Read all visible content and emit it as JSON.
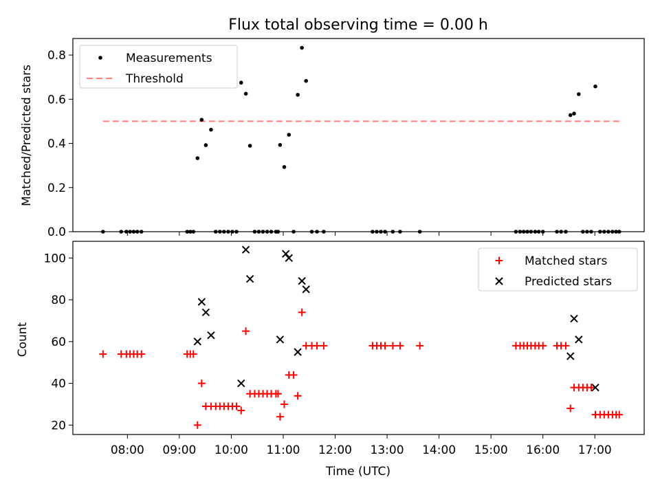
{
  "figure": {
    "title": "Flux total observing time = 0.00 h"
  },
  "chart_data": [
    {
      "type": "scatter",
      "panel": "top",
      "xlabel": "",
      "ylabel": "Matched/Predicted stars",
      "xlim": [
        6.95,
        17.95
      ],
      "ylim": [
        0,
        0.875
      ],
      "yticks": [
        0.0,
        0.2,
        0.4,
        0.6,
        0.8
      ],
      "ytick_labels": [
        "0.0",
        "0.2",
        "0.4",
        "0.6",
        "0.8"
      ],
      "xticks": [
        8,
        9,
        10,
        11,
        12,
        13,
        14,
        15,
        16,
        17
      ],
      "xtick_labels": [],
      "legend": {
        "position": "top-left",
        "entries": [
          {
            "label": "Measurements",
            "marker": "dot",
            "color": "#000000"
          },
          {
            "label": "Threshold",
            "marker": "dashed-line",
            "color": "#ff7f7f"
          }
        ]
      },
      "threshold": {
        "y": 0.5,
        "x_start": 7.53,
        "x_end": 17.47,
        "color": "#ff7f7f"
      },
      "series": [
        {
          "name": "Measurements",
          "marker": "dot",
          "color": "#000000",
          "points": [
            [
              7.53,
              0
            ],
            [
              7.88,
              0
            ],
            [
              7.98,
              0
            ],
            [
              8.05,
              0
            ],
            [
              8.12,
              0
            ],
            [
              8.19,
              0
            ],
            [
              8.27,
              0
            ],
            [
              9.15,
              0
            ],
            [
              9.21,
              0
            ],
            [
              9.27,
              0
            ],
            [
              9.35,
              0.333
            ],
            [
              9.43,
              0.507
            ],
            [
              9.51,
              0.392
            ],
            [
              9.61,
              0.462
            ],
            [
              9.7,
              0
            ],
            [
              9.78,
              0
            ],
            [
              9.86,
              0
            ],
            [
              9.94,
              0
            ],
            [
              10.02,
              0
            ],
            [
              10.1,
              0
            ],
            [
              10.19,
              0.675
            ],
            [
              10.28,
              0.625
            ],
            [
              10.36,
              0.389
            ],
            [
              10.45,
              0
            ],
            [
              10.53,
              0
            ],
            [
              10.61,
              0
            ],
            [
              10.69,
              0
            ],
            [
              10.77,
              0
            ],
            [
              10.86,
              0
            ],
            [
              10.9,
              0
            ],
            [
              10.94,
              0.393
            ],
            [
              11.02,
              0.293
            ],
            [
              11.11,
              0.439
            ],
            [
              11.2,
              0
            ],
            [
              11.28,
              0.62
            ],
            [
              11.36,
              0.833
            ],
            [
              11.44,
              0.683
            ],
            [
              11.55,
              0
            ],
            [
              11.65,
              0
            ],
            [
              11.78,
              0
            ],
            [
              12.72,
              0
            ],
            [
              12.8,
              0
            ],
            [
              12.88,
              0
            ],
            [
              12.96,
              0
            ],
            [
              13.11,
              0
            ],
            [
              13.25,
              0
            ],
            [
              13.63,
              0
            ],
            [
              15.48,
              0
            ],
            [
              15.56,
              0
            ],
            [
              15.63,
              0
            ],
            [
              15.7,
              0
            ],
            [
              15.77,
              0
            ],
            [
              15.85,
              0
            ],
            [
              15.92,
              0
            ],
            [
              16.0,
              0
            ],
            [
              16.27,
              0
            ],
            [
              16.35,
              0
            ],
            [
              16.44,
              0
            ],
            [
              16.53,
              0.528
            ],
            [
              16.6,
              0.535
            ],
            [
              16.69,
              0.623
            ],
            [
              16.77,
              0
            ],
            [
              16.85,
              0
            ],
            [
              16.93,
              0
            ],
            [
              17.01,
              0.658
            ],
            [
              17.1,
              0
            ],
            [
              17.18,
              0
            ],
            [
              17.26,
              0
            ],
            [
              17.34,
              0
            ],
            [
              17.41,
              0
            ],
            [
              17.47,
              0
            ]
          ]
        }
      ]
    },
    {
      "type": "scatter",
      "panel": "bottom",
      "xlabel": "Time (UTC)",
      "ylabel": "Count",
      "xlim": [
        6.95,
        17.95
      ],
      "ylim": [
        15.5,
        108
      ],
      "yticks": [
        20,
        40,
        60,
        80,
        100
      ],
      "ytick_labels": [
        "20",
        "40",
        "60",
        "80",
        "100"
      ],
      "xticks": [
        8,
        9,
        10,
        11,
        12,
        13,
        14,
        15,
        16,
        17
      ],
      "xtick_labels": [
        "08:00",
        "09:00",
        "10:00",
        "11:00",
        "12:00",
        "13:00",
        "14:00",
        "15:00",
        "16:00",
        "17:00"
      ],
      "legend": {
        "position": "top-right",
        "entries": [
          {
            "label": "Matched stars",
            "marker": "plus",
            "color": "#ff0000"
          },
          {
            "label": "Predicted stars",
            "marker": "x",
            "color": "#000000"
          }
        ]
      },
      "series": [
        {
          "name": "Matched stars",
          "marker": "plus",
          "color": "#ff0000",
          "points": [
            [
              7.53,
              54
            ],
            [
              7.88,
              54
            ],
            [
              7.98,
              54
            ],
            [
              8.05,
              54
            ],
            [
              8.12,
              54
            ],
            [
              8.19,
              54
            ],
            [
              8.27,
              54
            ],
            [
              9.15,
              54
            ],
            [
              9.21,
              54
            ],
            [
              9.27,
              54
            ],
            [
              9.35,
              20
            ],
            [
              9.43,
              40
            ],
            [
              9.51,
              29
            ],
            [
              9.61,
              29
            ],
            [
              9.7,
              29
            ],
            [
              9.78,
              29
            ],
            [
              9.86,
              29
            ],
            [
              9.94,
              29
            ],
            [
              10.02,
              29
            ],
            [
              10.1,
              29
            ],
            [
              10.19,
              27
            ],
            [
              10.28,
              65
            ],
            [
              10.36,
              35
            ],
            [
              10.45,
              35
            ],
            [
              10.53,
              35
            ],
            [
              10.61,
              35
            ],
            [
              10.69,
              35
            ],
            [
              10.77,
              35
            ],
            [
              10.86,
              35
            ],
            [
              10.9,
              35
            ],
            [
              10.94,
              24
            ],
            [
              11.02,
              30
            ],
            [
              11.11,
              44
            ],
            [
              11.2,
              44
            ],
            [
              11.28,
              34
            ],
            [
              11.36,
              74
            ],
            [
              11.44,
              58
            ],
            [
              11.55,
              58
            ],
            [
              11.65,
              58
            ],
            [
              11.78,
              58
            ],
            [
              12.72,
              58
            ],
            [
              12.8,
              58
            ],
            [
              12.88,
              58
            ],
            [
              12.96,
              58
            ],
            [
              13.11,
              58
            ],
            [
              13.25,
              58
            ],
            [
              13.63,
              58
            ],
            [
              15.48,
              58
            ],
            [
              15.56,
              58
            ],
            [
              15.63,
              58
            ],
            [
              15.7,
              58
            ],
            [
              15.77,
              58
            ],
            [
              15.85,
              58
            ],
            [
              15.92,
              58
            ],
            [
              16.0,
              58
            ],
            [
              16.27,
              58
            ],
            [
              16.35,
              58
            ],
            [
              16.44,
              58
            ],
            [
              16.53,
              28
            ],
            [
              16.6,
              38
            ],
            [
              16.69,
              38
            ],
            [
              16.77,
              38
            ],
            [
              16.85,
              38
            ],
            [
              16.93,
              38
            ],
            [
              17.01,
              25
            ],
            [
              17.1,
              25
            ],
            [
              17.18,
              25
            ],
            [
              17.26,
              25
            ],
            [
              17.34,
              25
            ],
            [
              17.41,
              25
            ],
            [
              17.47,
              25
            ]
          ]
        },
        {
          "name": "Predicted stars",
          "marker": "x",
          "color": "#000000",
          "points": [
            [
              9.35,
              60
            ],
            [
              9.43,
              79
            ],
            [
              9.51,
              74
            ],
            [
              9.61,
              63
            ],
            [
              10.19,
              40
            ],
            [
              10.28,
              104
            ],
            [
              10.36,
              90
            ],
            [
              10.94,
              61
            ],
            [
              11.05,
              102
            ],
            [
              11.11,
              100
            ],
            [
              11.28,
              55
            ],
            [
              11.36,
              89
            ],
            [
              11.44,
              85
            ],
            [
              16.53,
              53
            ],
            [
              16.6,
              71
            ],
            [
              16.69,
              61
            ],
            [
              17.01,
              38
            ]
          ]
        }
      ]
    }
  ]
}
